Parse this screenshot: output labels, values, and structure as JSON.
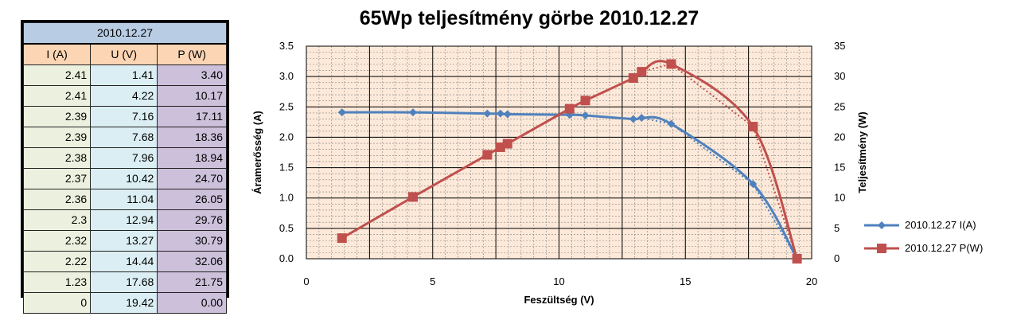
{
  "table": {
    "date": "2010.12.27",
    "headers": [
      "I (A)",
      "U (V)",
      "P (W)"
    ],
    "rows": [
      [
        "2.41",
        "1.41",
        "3.40"
      ],
      [
        "2.41",
        "4.22",
        "10.17"
      ],
      [
        "2.39",
        "7.16",
        "17.11"
      ],
      [
        "2.39",
        "7.68",
        "18.36"
      ],
      [
        "2.38",
        "7.96",
        "18.94"
      ],
      [
        "2.37",
        "10.42",
        "24.70"
      ],
      [
        "2.36",
        "11.04",
        "26.05"
      ],
      [
        "2.3",
        "12.94",
        "29.76"
      ],
      [
        "2.32",
        "13.27",
        "30.79"
      ],
      [
        "2.22",
        "14.44",
        "32.06"
      ],
      [
        "1.23",
        "17.68",
        "21.75"
      ],
      [
        "0",
        "19.42",
        "0.00"
      ]
    ]
  },
  "chart_data": {
    "type": "line",
    "title": "65Wp teljesítmény görbe 2010.12.27",
    "xlabel": "Feszültség (V)",
    "ylabel": "Áramerősség (A)",
    "y2label": "Teljesítmény (W)",
    "xlim": [
      0,
      20
    ],
    "ylim": [
      0,
      3.5
    ],
    "y2lim": [
      0,
      35
    ],
    "x_ticks": [
      "0",
      "5",
      "10",
      "15",
      "20"
    ],
    "y_ticks": [
      "0.0",
      "0.5",
      "1.0",
      "1.5",
      "2.0",
      "2.5",
      "3.0",
      "3.5"
    ],
    "y2_ticks": [
      "0",
      "5",
      "10",
      "15",
      "20",
      "25",
      "30",
      "35"
    ],
    "grid": true,
    "legend_position": "right",
    "plot_background": "#fde9d9",
    "series": [
      {
        "name": "2010.12.27 I(A)",
        "axis": "left",
        "color": "#4f81bd",
        "marker": "diamond",
        "x": [
          1.41,
          4.22,
          7.16,
          7.68,
          7.96,
          10.42,
          11.04,
          12.94,
          13.27,
          14.44,
          17.68,
          19.42
        ],
        "y": [
          2.41,
          2.41,
          2.39,
          2.39,
          2.38,
          2.37,
          2.36,
          2.3,
          2.32,
          2.22,
          1.23,
          0
        ]
      },
      {
        "name": "2010.12.27 P(W)",
        "axis": "right",
        "color": "#c0504d",
        "marker": "square",
        "x": [
          1.41,
          4.22,
          7.16,
          7.68,
          7.96,
          10.42,
          11.04,
          12.94,
          13.27,
          14.44,
          17.68,
          19.42
        ],
        "y": [
          3.4,
          10.17,
          17.11,
          18.36,
          18.94,
          24.7,
          26.05,
          29.76,
          30.79,
          32.06,
          21.75,
          0.0
        ]
      }
    ]
  }
}
